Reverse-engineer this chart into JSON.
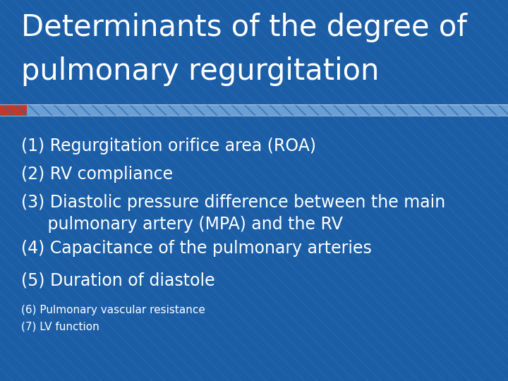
{
  "title_line1": "Determinants of the degree of",
  "title_line2": "pulmonary regurgitation",
  "bg_color": "#1B5EA6",
  "stripe_color": "#2468B4",
  "title_color": "#FFFFFF",
  "text_color": "#FFFFFF",
  "accent_bar_color": "#C0392B",
  "separator_color": "#6B9FD4",
  "title_fontsize": 30,
  "body_fontsize": 17,
  "small_fontsize": 11,
  "main_items": [
    "(1) Regurgitation orifice area (ROA)",
    "(2) RV compliance",
    "(3) Diastolic pressure difference between the main\n     pulmonary artery (MPA) and the RV",
    "(4) Capacitance of the pulmonary arteries",
    "(5) Duration of diastole"
  ],
  "small_items": [
    "(6) Pulmonary vascular resistance",
    "(7) LV function"
  ]
}
